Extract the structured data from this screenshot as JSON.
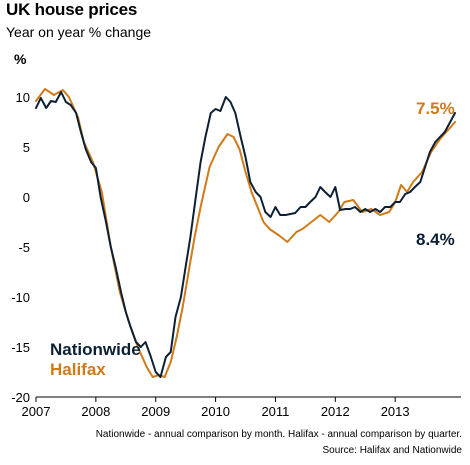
{
  "title": "UK house prices",
  "subtitle": "Year on year % change",
  "colors": {
    "nationwide": "#0c2035",
    "halifax": "#d07a18",
    "grid": "#ffffff",
    "axis": "#000000",
    "text": "#000000"
  },
  "chart_data": {
    "type": "line",
    "ylabel": "%",
    "xlabel": "",
    "xlim": [
      2007,
      2014.1
    ],
    "ylim": [
      -20,
      12
    ],
    "x_ticks": [
      "2007",
      "2008",
      "2009",
      "2010",
      "2011",
      "2012",
      "2013"
    ],
    "y_ticks": [
      "10",
      "5",
      "0",
      "-5",
      "-10",
      "-15",
      "-20"
    ],
    "grid": false,
    "annotations": {
      "halifax_latest": "7.5%",
      "nationwide_latest": "8.4%"
    },
    "legend": [
      "Nationwide",
      "Halifax"
    ],
    "footnote": "Nationwide - annual comparison by month. Halifax - annual comparison by quarter.",
    "source": "Source: Halifax and Nationwide",
    "series": [
      {
        "name": "Nationwide",
        "x": [
          2007.0,
          2007.08,
          2007.17,
          2007.25,
          2007.33,
          2007.42,
          2007.5,
          2007.58,
          2007.67,
          2007.75,
          2007.83,
          2007.92,
          2008.0,
          2008.08,
          2008.17,
          2008.25,
          2008.33,
          2008.42,
          2008.5,
          2008.58,
          2008.67,
          2008.75,
          2008.83,
          2008.92,
          2009.0,
          2009.08,
          2009.17,
          2009.25,
          2009.33,
          2009.42,
          2009.5,
          2009.58,
          2009.67,
          2009.75,
          2009.83,
          2009.92,
          2010.0,
          2010.08,
          2010.17,
          2010.25,
          2010.33,
          2010.42,
          2010.5,
          2010.58,
          2010.67,
          2010.75,
          2010.83,
          2010.92,
          2011.0,
          2011.08,
          2011.17,
          2011.25,
          2011.33,
          2011.42,
          2011.5,
          2011.58,
          2011.67,
          2011.75,
          2011.83,
          2011.92,
          2012.0,
          2012.08,
          2012.17,
          2012.25,
          2012.33,
          2012.42,
          2012.5,
          2012.58,
          2012.67,
          2012.75,
          2012.83,
          2012.92,
          2013.0,
          2013.08,
          2013.17,
          2013.25,
          2013.33,
          2013.42,
          2013.5,
          2013.58,
          2013.67,
          2013.75,
          2013.83,
          2013.92,
          2014.0
        ],
        "y": [
          8.9,
          9.9,
          8.9,
          9.6,
          9.5,
          10.5,
          9.5,
          9.2,
          8.4,
          6.5,
          4.8,
          3.5,
          2.9,
          0.0,
          -2.5,
          -5.0,
          -7.0,
          -9.5,
          -11.5,
          -13.0,
          -14.5,
          -15.0,
          -14.5,
          -16.0,
          -17.5,
          -18.0,
          -16.0,
          -15.5,
          -12.0,
          -10.0,
          -7.0,
          -4.0,
          0.0,
          3.5,
          6.0,
          8.4,
          8.8,
          8.6,
          10.0,
          9.5,
          8.4,
          6.0,
          4.0,
          1.5,
          0.5,
          0.0,
          -1.5,
          -2.0,
          -1.0,
          -1.8,
          -1.8,
          -1.7,
          -1.6,
          -1.0,
          -1.0,
          -0.5,
          0.0,
          1.0,
          0.5,
          0.0,
          1.0,
          -1.3,
          -1.2,
          -1.2,
          -1.0,
          -1.5,
          -1.2,
          -1.5,
          -1.2,
          -1.5,
          -1.0,
          -1.0,
          -0.5,
          -0.5,
          0.3,
          0.5,
          1.0,
          1.5,
          3.0,
          4.5,
          5.5,
          6.0,
          6.5,
          7.5,
          8.4
        ]
      },
      {
        "name": "Halifax",
        "x": [
          2007.0,
          2007.15,
          2007.3,
          2007.45,
          2007.55,
          2007.7,
          2007.8,
          2007.95,
          2008.1,
          2008.25,
          2008.4,
          2008.55,
          2008.7,
          2008.85,
          2008.95,
          2009.05,
          2009.15,
          2009.25,
          2009.35,
          2009.45,
          2009.55,
          2009.65,
          2009.75,
          2009.9,
          2010.05,
          2010.2,
          2010.3,
          2010.4,
          2010.5,
          2010.6,
          2010.7,
          2010.8,
          2010.9,
          2011.05,
          2011.2,
          2011.35,
          2011.45,
          2011.6,
          2011.75,
          2011.9,
          2012.05,
          2012.15,
          2012.3,
          2012.45,
          2012.6,
          2012.75,
          2012.9,
          2013.0,
          2013.1,
          2013.2,
          2013.3,
          2013.45,
          2013.6,
          2013.75,
          2013.9,
          2014.0
        ],
        "y": [
          9.6,
          10.8,
          10.2,
          10.7,
          10.0,
          8.0,
          5.5,
          3.5,
          0.5,
          -5.0,
          -9.5,
          -12.5,
          -15.0,
          -17.0,
          -18.0,
          -17.8,
          -18.0,
          -16.5,
          -14.0,
          -11.0,
          -7.5,
          -4.0,
          -1.0,
          3.0,
          5.0,
          6.3,
          6.0,
          4.8,
          2.5,
          0.5,
          -1.0,
          -2.5,
          -3.2,
          -3.8,
          -4.5,
          -3.5,
          -3.2,
          -2.5,
          -1.8,
          -2.5,
          -1.5,
          -0.5,
          -0.3,
          -1.5,
          -1.2,
          -1.8,
          -1.5,
          -0.5,
          1.2,
          0.5,
          1.5,
          2.5,
          4.5,
          5.8,
          6.8,
          7.5
        ]
      }
    ]
  }
}
